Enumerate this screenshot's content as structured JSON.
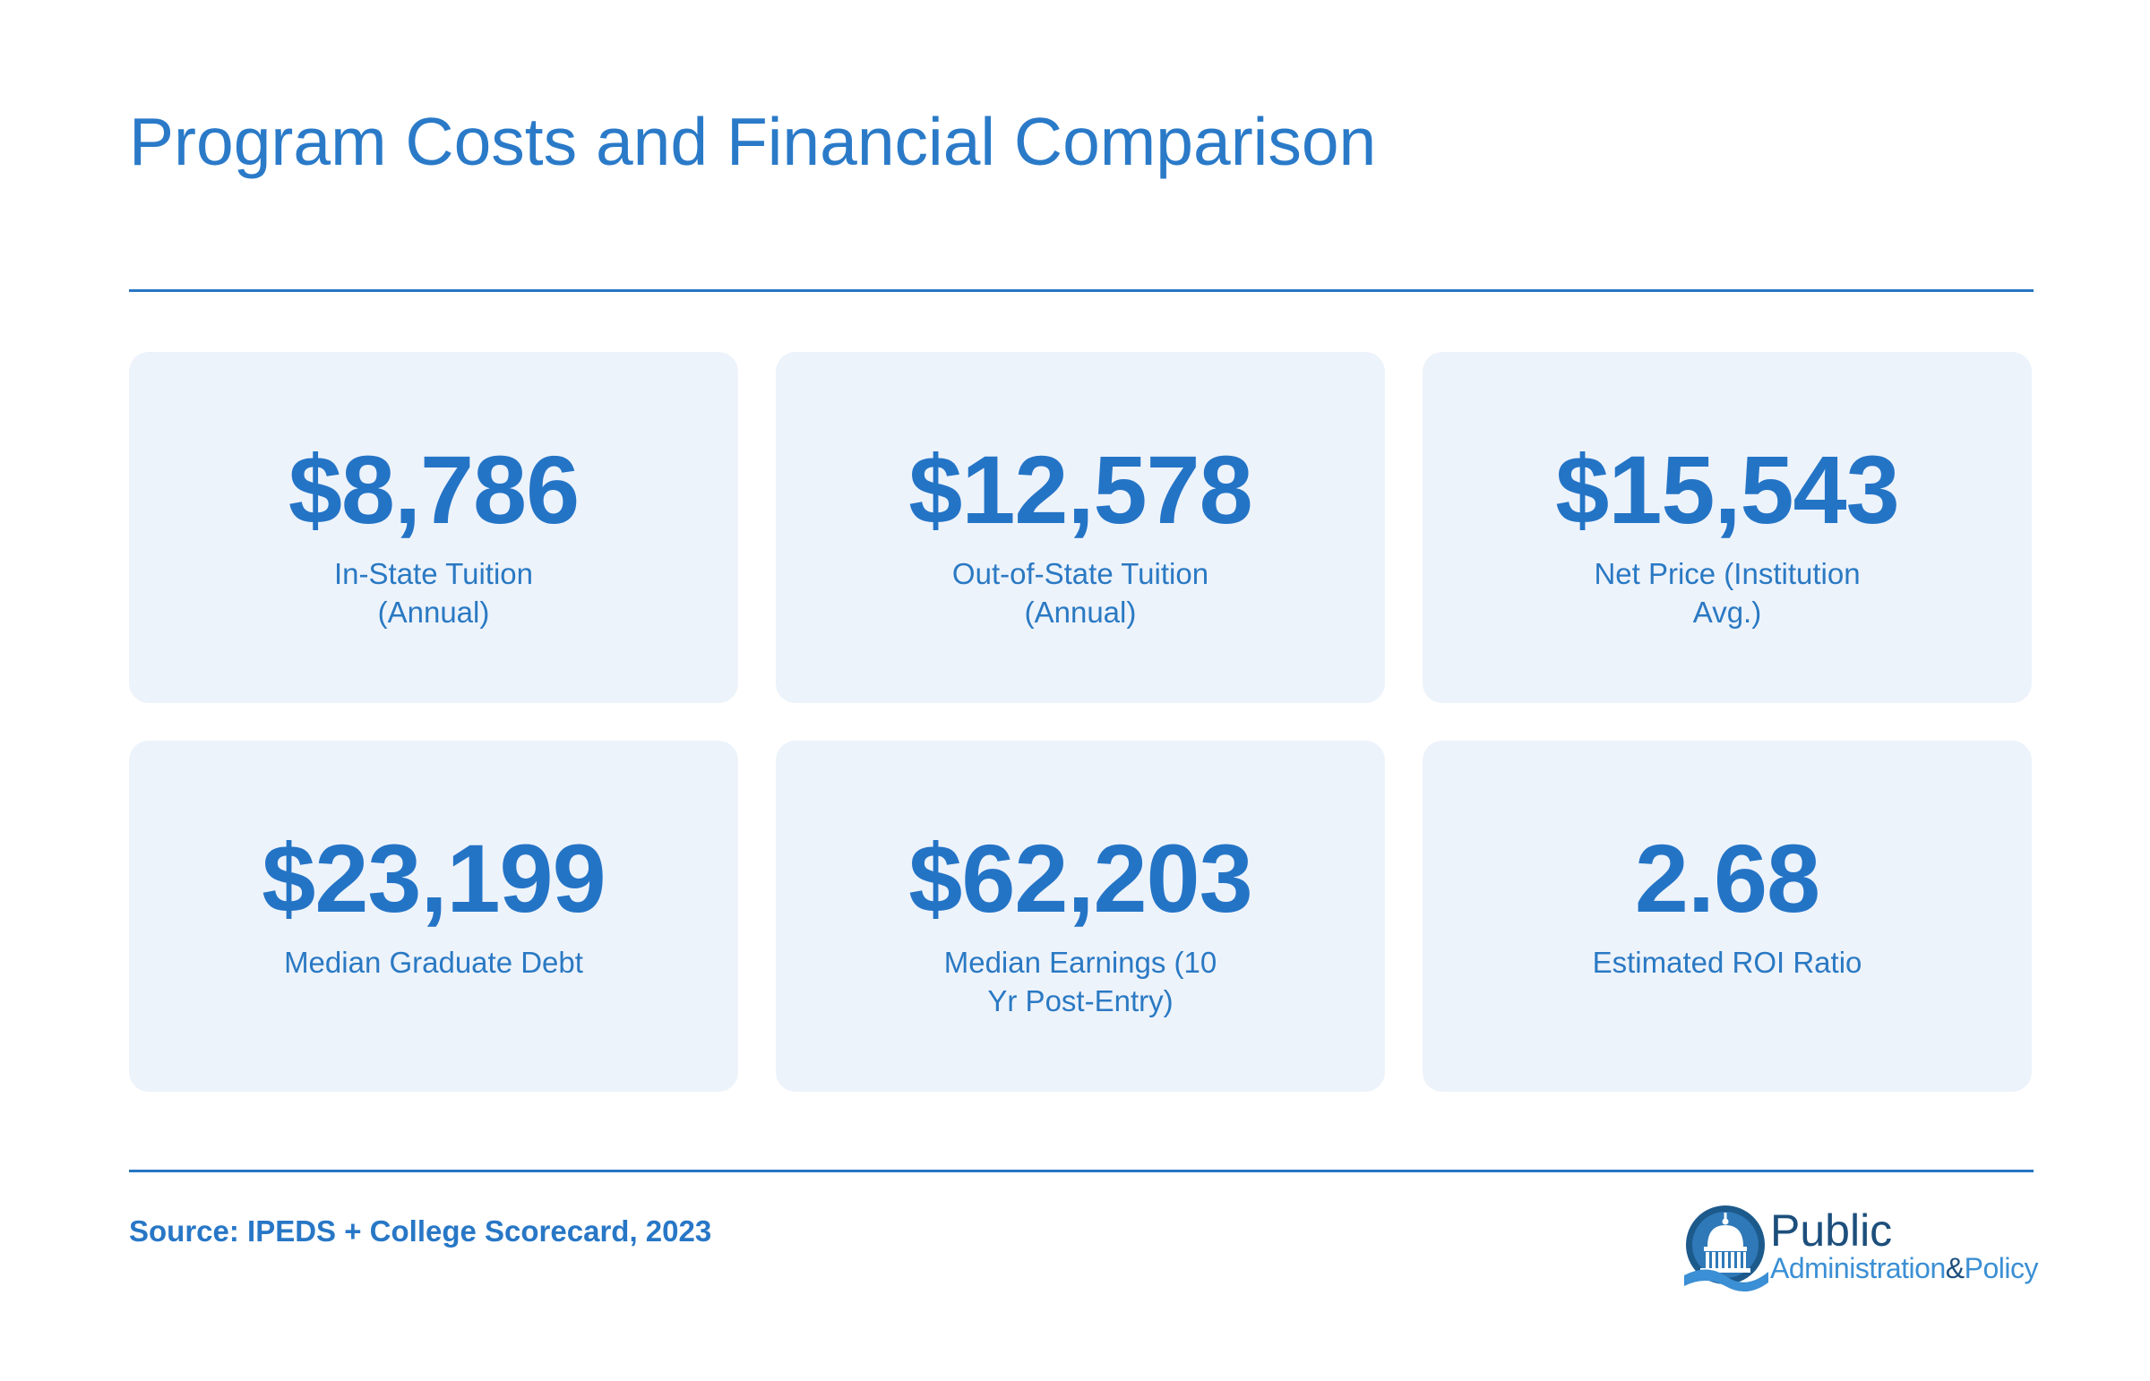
{
  "page": {
    "title": "Program Costs and Financial Comparison",
    "source": "Source: IPEDS + College Scorecard, 2023"
  },
  "metrics": [
    {
      "value": "$8,786",
      "label": "In-State Tuition (Annual)"
    },
    {
      "value": "$12,578",
      "label": "Out-of-State Tuition (Annual)"
    },
    {
      "value": "$15,543",
      "label": "Net Price (Institution Avg.)"
    },
    {
      "value": "$23,199",
      "label": "Median Graduate Debt"
    },
    {
      "value": "$62,203",
      "label": "Median Earnings (10 Yr Post-Entry)"
    },
    {
      "value": "2.68",
      "label": "Estimated ROI Ratio"
    }
  ],
  "logo": {
    "line1": "Public",
    "line2_a": "Administration",
    "line2_amp": "&",
    "line2_b": "Policy",
    "icon": "capitol-dome-icon"
  },
  "colors": {
    "accent": "#2474c6",
    "card_background": "#edf3fb",
    "logo_dark": "#1d4f7c"
  }
}
